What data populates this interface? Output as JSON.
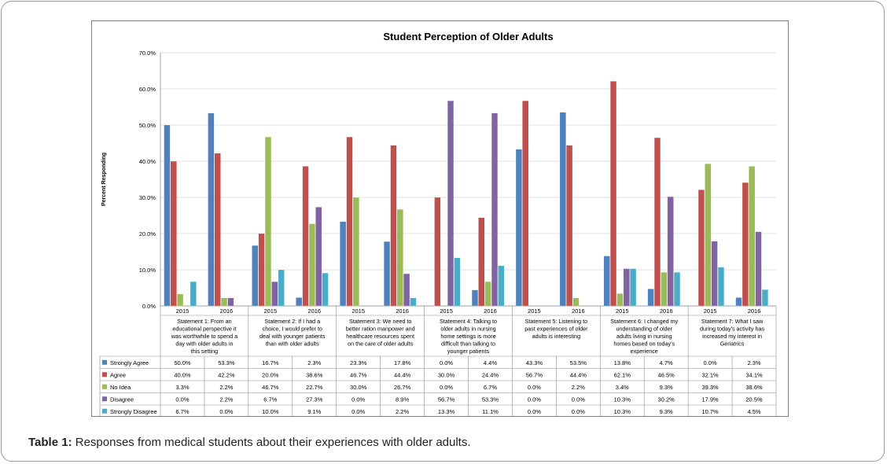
{
  "chart_data": {
    "type": "bar",
    "title": "Student Perception of Older Adults",
    "ylabel": "Percent Responding",
    "xlabel": "",
    "ylim": [
      0,
      70
    ],
    "yticks": [
      "0.0%",
      "10.0%",
      "20.0%",
      "30.0%",
      "40.0%",
      "50.0%",
      "60.0%",
      "70.0%"
    ],
    "grid": true,
    "years": [
      "2015",
      "2016"
    ],
    "statements": [
      "Statement 1: From an educational perspective it was worthwhile to spend a day with older adults in this setting",
      "Statement 2: If I had a choice, I would prefer to deal with younger patients than with older adults",
      "Statement 3: We need to better ration manpower and healthcare resources spent on the care of older adults",
      "Statement 4: Talking to older adults in nursing home settings is more difficult than talking to younger patients",
      "Statement 5: Listening to past experiences of older adults is interesting",
      "Statement 6: I changed my understanding of older adults living in nursing homes based on today's experience",
      "Statement 7: What I saw during today's activity has increased my interest in Geriatrics"
    ],
    "series": [
      {
        "name": "Strongly Agree",
        "color": "#4f81bd",
        "values": [
          50.0,
          53.3,
          16.7,
          2.3,
          23.3,
          17.8,
          0.0,
          4.4,
          43.3,
          53.5,
          13.8,
          4.7,
          0.0,
          2.3
        ],
        "labels": [
          "50.0%",
          "53.3%",
          "16.7%",
          "2.3%",
          "23.3%",
          "17.8%",
          "0.0%",
          "4.4%",
          "43.3%",
          "53.5%",
          "13.8%",
          "4.7%",
          "0.0%",
          "2.3%"
        ]
      },
      {
        "name": "Agree",
        "color": "#c0504d",
        "values": [
          40.0,
          42.2,
          20.0,
          38.6,
          46.7,
          44.4,
          30.0,
          24.4,
          56.7,
          44.4,
          62.1,
          46.5,
          32.1,
          34.1
        ],
        "labels": [
          "40.0%",
          "42.2%",
          "20.0%",
          "38.6%",
          "46.7%",
          "44.4%",
          "30.0%",
          "24.4%",
          "56.7%",
          "44.4%",
          "62.1%",
          "46.5%",
          "32.1%",
          "34.1%"
        ]
      },
      {
        "name": "No Idea",
        "color": "#9bbb59",
        "values": [
          3.3,
          2.2,
          46.7,
          22.7,
          30.0,
          26.7,
          0.0,
          6.7,
          0.0,
          2.2,
          3.4,
          9.3,
          39.3,
          38.6
        ],
        "labels": [
          "3.3%",
          "2.2%",
          "46.7%",
          "22.7%",
          "30.0%",
          "26.7%",
          "0.0%",
          "6.7%",
          "0.0%",
          "2.2%",
          "3.4%",
          "9.3%",
          "39.3%",
          "38.6%"
        ]
      },
      {
        "name": "Disagree",
        "color": "#8064a2",
        "values": [
          0.0,
          2.2,
          6.7,
          27.3,
          0.0,
          8.9,
          56.7,
          53.3,
          0.0,
          0.0,
          10.3,
          30.2,
          17.9,
          20.5
        ],
        "labels": [
          "0.0%",
          "2.2%",
          "6.7%",
          "27.3%",
          "0.0%",
          "8.9%",
          "56.7%",
          "53.3%",
          "0.0%",
          "0.0%",
          "10.3%",
          "30.2%",
          "17.9%",
          "20.5%"
        ]
      },
      {
        "name": "Strongly Disagree",
        "color": "#4bacc6",
        "values": [
          6.7,
          0.0,
          10.0,
          9.1,
          0.0,
          2.2,
          13.3,
          11.1,
          0.0,
          0.0,
          10.3,
          9.3,
          10.7,
          4.5
        ],
        "labels": [
          "6.7%",
          "0.0%",
          "10.0%",
          "9.1%",
          "0.0%",
          "2.2%",
          "13.3%",
          "11.1%",
          "0.0%",
          "0.0%",
          "10.3%",
          "9.3%",
          "10.7%",
          "4.5%"
        ]
      }
    ]
  },
  "caption": {
    "label": "Table 1:",
    "text": " Responses from medical students about their experiences with older adults."
  }
}
